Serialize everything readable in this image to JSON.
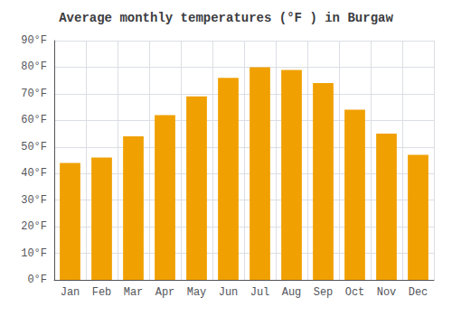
{
  "chart_data": {
    "type": "bar",
    "title": "Average monthly temperatures (°F ) in Burgaw",
    "categories": [
      "Jan",
      "Feb",
      "Mar",
      "Apr",
      "May",
      "Jun",
      "Jul",
      "Aug",
      "Sep",
      "Oct",
      "Nov",
      "Dec"
    ],
    "values": [
      44,
      46,
      54,
      62,
      69,
      76,
      80,
      79,
      74,
      64,
      55,
      47
    ],
    "color": "#F0A000",
    "ylim": [
      0,
      90
    ],
    "yticks": [
      {
        "value": 0,
        "label": "0°F"
      },
      {
        "value": 10,
        "label": "10°F"
      },
      {
        "value": 20,
        "label": "20°F"
      },
      {
        "value": 30,
        "label": "30°F"
      },
      {
        "value": 40,
        "label": "40°F"
      },
      {
        "value": 50,
        "label": "50°F"
      },
      {
        "value": 60,
        "label": "60°F"
      },
      {
        "value": 70,
        "label": "70°F"
      },
      {
        "value": 80,
        "label": "80°F"
      },
      {
        "value": 90,
        "label": "90°F"
      }
    ],
    "grid": true
  }
}
